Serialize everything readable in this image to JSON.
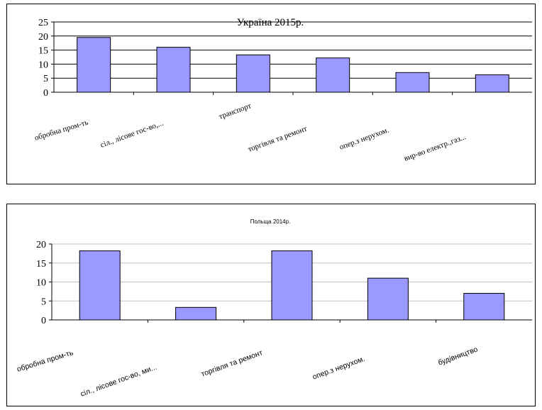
{
  "chart_data": [
    {
      "type": "bar",
      "title": "Україна 2015р.",
      "categories": [
        "обробна пром-ть",
        "сіл., лісове гос-во,...",
        "транспорт",
        "торгівля та ремонт",
        "опер.з нерухом.",
        "вир-во електр.,газ..."
      ],
      "values": [
        19.5,
        16,
        13.3,
        12.2,
        7,
        6.2
      ],
      "ylim": [
        0,
        25
      ],
      "yticks": [
        0,
        5,
        10,
        15,
        20,
        25
      ],
      "grid": true,
      "bar_color": "#9999ff",
      "grid_color": "#000000"
    },
    {
      "type": "bar",
      "title": "Польща 2014р.",
      "categories": [
        "обробна пром-ть",
        "сіл., лісове гос-во, ми...",
        "торгівля та ремонт",
        "опер.з нерухом.",
        "будівництво"
      ],
      "values": [
        18.2,
        3.3,
        18.2,
        11,
        7
      ],
      "ylim": [
        0,
        20
      ],
      "yticks": [
        0,
        5,
        10,
        15,
        20
      ],
      "grid": true,
      "bar_color": "#9999ff",
      "grid_color": "#c0c0c0"
    }
  ]
}
